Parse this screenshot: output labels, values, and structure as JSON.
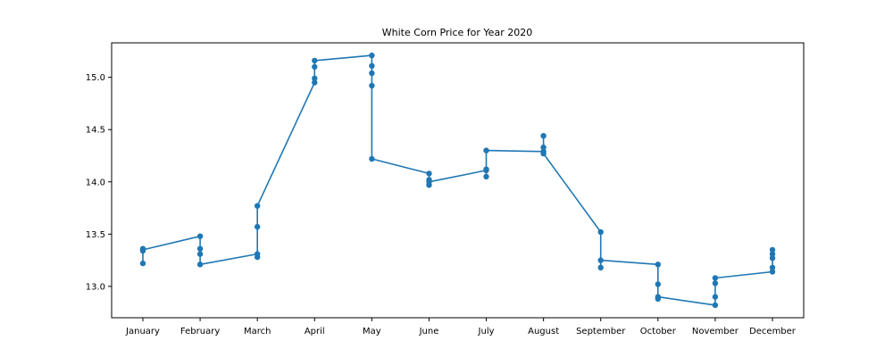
{
  "chart_data": {
    "type": "line",
    "title": "White Corn Price for Year 2020",
    "xlabel": "",
    "ylabel": "",
    "categories": [
      "January",
      "February",
      "March",
      "April",
      "May",
      "June",
      "July",
      "August",
      "September",
      "October",
      "November",
      "December"
    ],
    "series": [
      {
        "name": "",
        "color": "#1f77b4",
        "points": [
          {
            "x": "January",
            "y": 13.22
          },
          {
            "x": "January",
            "y": 13.34
          },
          {
            "x": "January",
            "y": 13.36
          },
          {
            "x": "January",
            "y": 13.35
          },
          {
            "x": "February",
            "y": 13.48
          },
          {
            "x": "February",
            "y": 13.36
          },
          {
            "x": "February",
            "y": 13.31
          },
          {
            "x": "February",
            "y": 13.21
          },
          {
            "x": "March",
            "y": 13.31
          },
          {
            "x": "March",
            "y": 13.28
          },
          {
            "x": "March",
            "y": 13.57
          },
          {
            "x": "March",
            "y": 13.77
          },
          {
            "x": "April",
            "y": 14.95
          },
          {
            "x": "April",
            "y": 14.99
          },
          {
            "x": "April",
            "y": 15.1
          },
          {
            "x": "April",
            "y": 15.16
          },
          {
            "x": "May",
            "y": 15.21
          },
          {
            "x": "May",
            "y": 15.11
          },
          {
            "x": "May",
            "y": 15.04
          },
          {
            "x": "May",
            "y": 14.92
          },
          {
            "x": "May",
            "y": 14.22
          },
          {
            "x": "June",
            "y": 14.08
          },
          {
            "x": "June",
            "y": 14.02
          },
          {
            "x": "June",
            "y": 13.97
          },
          {
            "x": "June",
            "y": 14.0
          },
          {
            "x": "July",
            "y": 14.11
          },
          {
            "x": "July",
            "y": 14.05
          },
          {
            "x": "July",
            "y": 14.12
          },
          {
            "x": "July",
            "y": 14.3
          },
          {
            "x": "August",
            "y": 14.29
          },
          {
            "x": "August",
            "y": 14.44
          },
          {
            "x": "August",
            "y": 14.33
          },
          {
            "x": "August",
            "y": 14.27
          },
          {
            "x": "September",
            "y": 13.52
          },
          {
            "x": "September",
            "y": 13.18
          },
          {
            "x": "September",
            "y": 13.25
          },
          {
            "x": "October",
            "y": 13.21
          },
          {
            "x": "October",
            "y": 13.02
          },
          {
            "x": "October",
            "y": 12.88
          },
          {
            "x": "October",
            "y": 12.9
          },
          {
            "x": "November",
            "y": 12.82
          },
          {
            "x": "November",
            "y": 12.9
          },
          {
            "x": "November",
            "y": 13.03
          },
          {
            "x": "November",
            "y": 13.08
          },
          {
            "x": "December",
            "y": 13.14
          },
          {
            "x": "December",
            "y": 13.18
          },
          {
            "x": "December",
            "y": 13.27
          },
          {
            "x": "December",
            "y": 13.31
          },
          {
            "x": "December",
            "y": 13.35
          }
        ]
      }
    ],
    "yticks": [
      13.0,
      13.5,
      14.0,
      14.5,
      15.0
    ],
    "ytick_labels": [
      "13.0",
      "13.5",
      "14.0",
      "14.5",
      "15.0"
    ],
    "ylim": [
      12.7,
      15.33
    ],
    "grid": false,
    "markers": true
  }
}
